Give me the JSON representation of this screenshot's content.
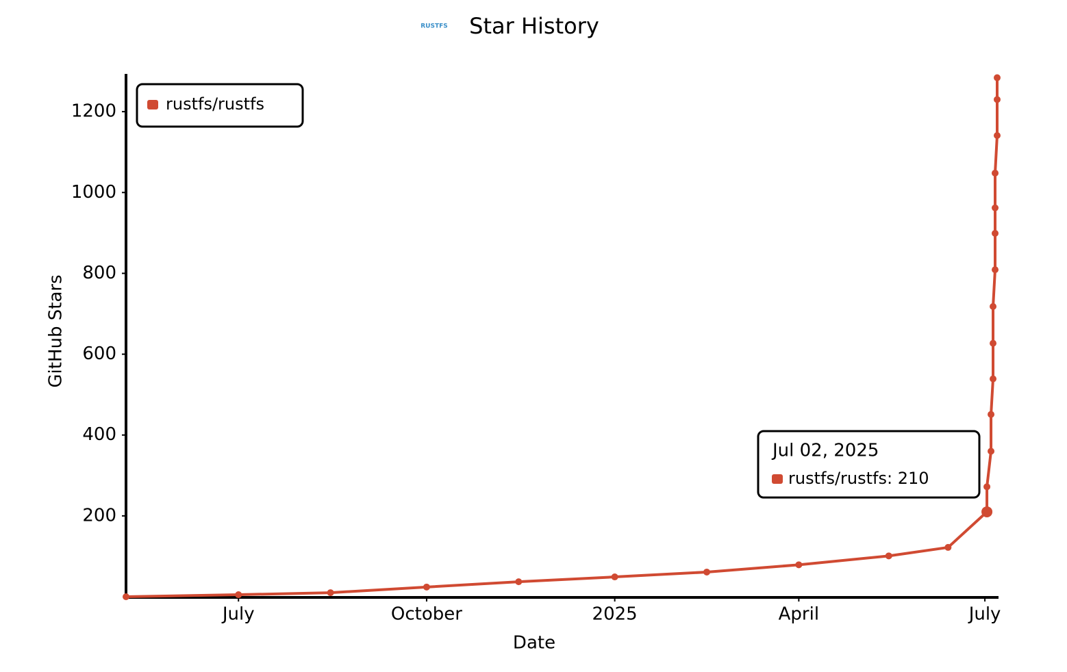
{
  "chart_data": {
    "type": "line",
    "logo": "RUSTFS",
    "title": "Star History",
    "x_label": "Date",
    "y_label": "GitHub Stars",
    "x": [
      "2024-05-07",
      "2024-07-01",
      "2024-08-15",
      "2024-10-01",
      "2024-11-15",
      "2025-01-01",
      "2025-02-15",
      "2025-04-01",
      "2025-05-15",
      "2025-06-13",
      "2025-07-02",
      "2025-07-02",
      "2025-07-04",
      "2025-07-04",
      "2025-07-05",
      "2025-07-05",
      "2025-07-05",
      "2025-07-06",
      "2025-07-06",
      "2025-07-06",
      "2025-07-06",
      "2025-07-07",
      "2025-07-07",
      "2025-07-07"
    ],
    "series": [
      {
        "name": "rustfs/rustfs",
        "color": "#d04a32",
        "values": [
          0,
          5,
          10,
          24,
          37,
          49,
          61,
          79,
          101,
          122,
          210,
          272,
          360,
          451,
          539,
          627,
          718,
          809,
          899,
          962,
          1048,
          1141,
          1230,
          1284
        ]
      }
    ],
    "xlim": [
      "2024-05-07",
      "2025-07-07"
    ],
    "xticks": [
      {
        "value": "2024-07-01",
        "label": "July"
      },
      {
        "value": "2024-10-01",
        "label": "October"
      },
      {
        "value": "2025-01-01",
        "label": "2025"
      },
      {
        "value": "2025-04-01",
        "label": "April"
      },
      {
        "value": "2025-07-01",
        "label": "July"
      }
    ],
    "ylim": [
      0,
      1290
    ],
    "yticks": [
      200,
      400,
      600,
      800,
      1000,
      1200
    ],
    "grid": false,
    "legend": "top-left",
    "tooltip": {
      "title": "Jul 02, 2025",
      "text": "rustfs/rustfs: 210",
      "index": 10
    }
  }
}
